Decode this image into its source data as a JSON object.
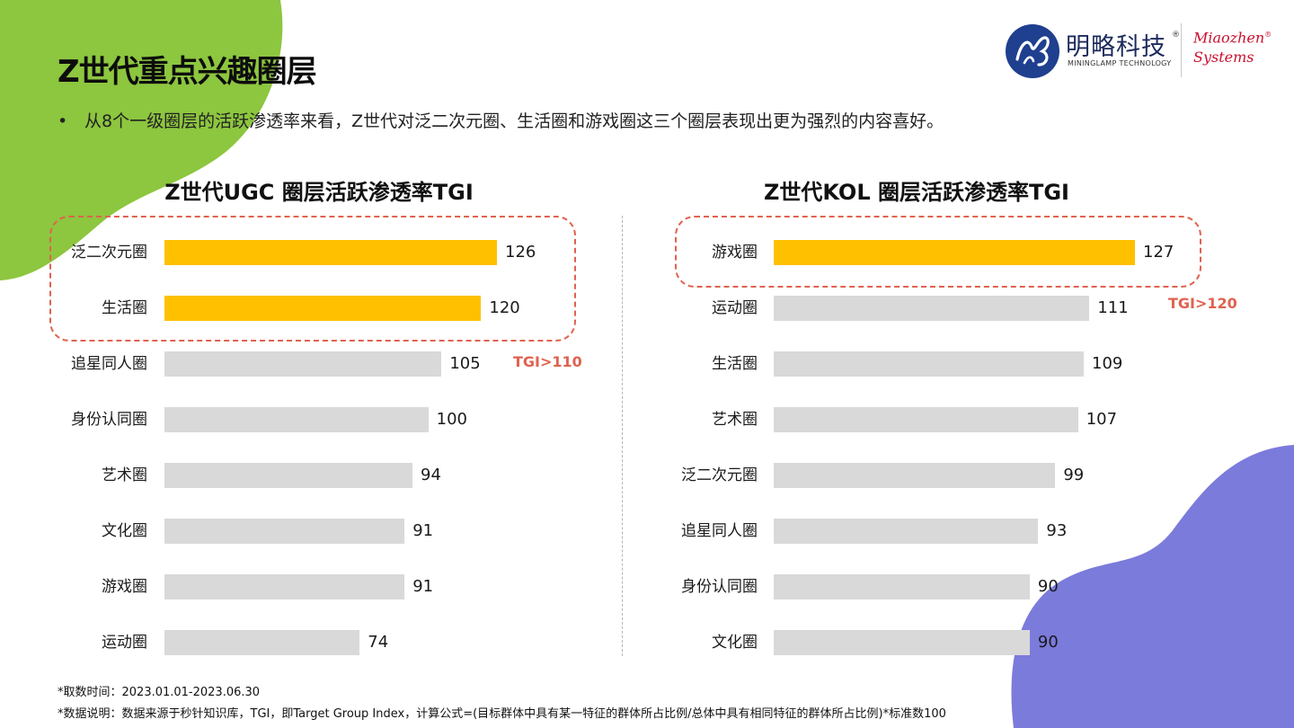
{
  "page": {
    "title": "Z世代重点兴趣圈层",
    "subtitle": "从8个一级圈层的活跃渗透率来看，Z世代对泛二次元圈、生活圈和游戏圈这三个圈层表现出更为强烈的内容喜好。",
    "bullet": "•"
  },
  "logo": {
    "cn": "明略科技",
    "en": "MININGLAMP TECHNOLOGY",
    "reg": "®",
    "mz_line1": "Miaozhen",
    "mz_line2": "Systems",
    "mz_reg": "®"
  },
  "colors": {
    "highlight": "#FFC000",
    "normal": "#D9D9D9",
    "accent": "#E0624F",
    "blob_green": "#8DC63F",
    "blob_purple": "#7B7BDB"
  },
  "chart_data": [
    {
      "type": "bar",
      "orientation": "horizontal",
      "title": "Z世代UGC 圈层活跃渗透率TGI",
      "categories": [
        "泛二次元圈",
        "生活圈",
        "追星同人圈",
        "身份认同圈",
        "艺术圈",
        "文化圈",
        "游戏圈",
        "运动圈"
      ],
      "values": [
        126,
        120,
        105,
        100,
        94,
        91,
        91,
        74
      ],
      "highlight": [
        true,
        true,
        false,
        false,
        false,
        false,
        false,
        false
      ],
      "xlim": [
        0,
        126
      ],
      "annotation": "TGI>110",
      "grid": false
    },
    {
      "type": "bar",
      "orientation": "horizontal",
      "title": "Z世代KOL 圈层活跃渗透率TGI",
      "categories": [
        "游戏圈",
        "运动圈",
        "生活圈",
        "艺术圈",
        "泛二次元圈",
        "追星同人圈",
        "身份认同圈",
        "文化圈"
      ],
      "values": [
        127,
        111,
        109,
        107,
        99,
        93,
        90,
        90
      ],
      "highlight": [
        true,
        false,
        false,
        false,
        false,
        false,
        false,
        false
      ],
      "xlim": [
        0,
        127
      ],
      "annotation": "TGI>120",
      "grid": false
    }
  ],
  "footnotes": [
    "*取数时间：2023.01.01-2023.06.30",
    "*数据说明：数据来源于秒针知识库，TGI，即Target Group Index，计算公式=(目标群体中具有某一特征的群体所占比例/总体中具有相同特征的群体所占比例)*标准数100"
  ]
}
